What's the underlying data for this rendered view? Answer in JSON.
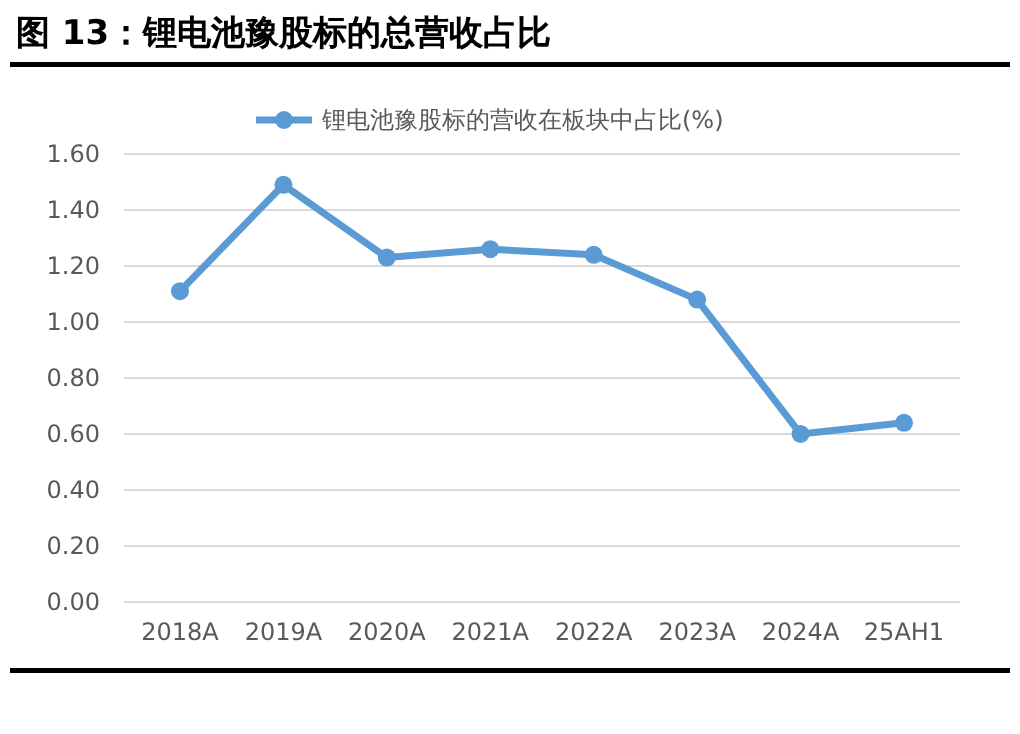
{
  "chart_data": {
    "type": "line",
    "title": "图 13：锂电池豫股标的总营收占比",
    "categories": [
      "2018A",
      "2019A",
      "2020A",
      "2021A",
      "2022A",
      "2023A",
      "2024A",
      "25AH1"
    ],
    "series": [
      {
        "name": "锂电池豫股标的营收在板块中占比(%)",
        "color": "#5b9bd5",
        "values": [
          1.11,
          1.49,
          1.23,
          1.26,
          1.24,
          1.08,
          0.6,
          0.64
        ]
      }
    ],
    "ylim": [
      0,
      1.6
    ],
    "yticks": [
      {
        "value": 0,
        "label": "0.00"
      },
      {
        "value": 0.2,
        "label": "0.20"
      },
      {
        "value": 0.4,
        "label": "0.40"
      },
      {
        "value": 0.6,
        "label": "0.60"
      },
      {
        "value": 0.8,
        "label": "0.80"
      },
      {
        "value": 1,
        "label": "1.00"
      },
      {
        "value": 1.2,
        "label": "1.20"
      },
      {
        "value": 1.4,
        "label": "1.40"
      },
      {
        "value": 1.6,
        "label": "1.60"
      }
    ],
    "grid": "y",
    "legend": "top",
    "marker": "circle",
    "line_style": "solid"
  }
}
